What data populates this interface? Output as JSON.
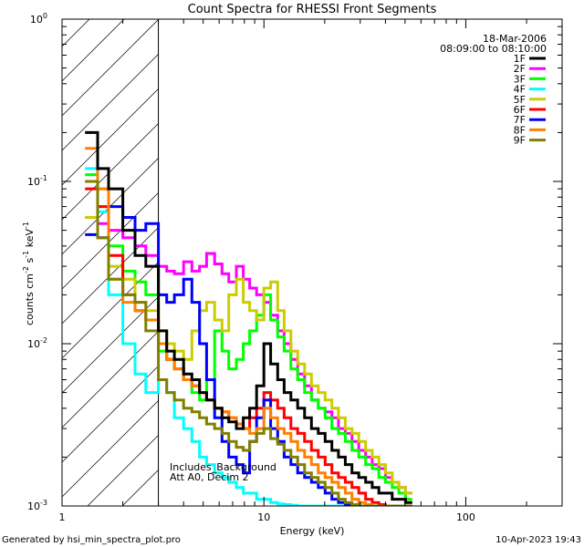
{
  "chart_data": {
    "type": "line",
    "title": "Count Spectra for RHESSI Front Segments",
    "xlabel": "Energy (keV)",
    "ylabel_parts": {
      "counts": "counts cm",
      "exp1": "-2",
      "s": " s",
      "exp2": "-1",
      "kev": " keV",
      "exp3": "-1"
    },
    "xscale": "log",
    "yscale": "log",
    "xlim": [
      1.0,
      300.0
    ],
    "ylim": [
      0.001,
      1.0
    ],
    "x_ticks": [
      {
        "value": 1,
        "label": "1"
      },
      {
        "value": 10,
        "label": "10"
      },
      {
        "value": 100,
        "label": "100"
      }
    ],
    "y_ticks": [
      {
        "value": 1,
        "base": "10",
        "exp": "0"
      },
      {
        "value": 0.1,
        "base": "10",
        "exp": "-1"
      },
      {
        "value": 0.01,
        "base": "10",
        "exp": "-2"
      },
      {
        "value": 0.001,
        "base": "10",
        "exp": "-3"
      }
    ],
    "hatched_region_x": [
      1.0,
      3.0
    ],
    "legend_header": [
      "18-Mar-2006",
      "08:09:00 to 08:10:00"
    ],
    "annotations": [
      "Includes_Background",
      "Att A0, Decim 2"
    ],
    "x_energy_edges": [
      1.3,
      1.5,
      1.7,
      2.0,
      2.3,
      2.6,
      3.0,
      3.3,
      3.6,
      4.0,
      4.4,
      4.8,
      5.2,
      5.7,
      6.2,
      6.7,
      7.3,
      7.9,
      8.5,
      9.2,
      10.0,
      10.8,
      11.7,
      12.6,
      13.6,
      14.7,
      15.9,
      17.2,
      18.6,
      20.1,
      21.7,
      23.4,
      25.3,
      27.3,
      29.5,
      31.9,
      34.4,
      37.1,
      40.0,
      43.2,
      46.6,
      50.3,
      54.3
    ],
    "series": [
      {
        "name": "1F",
        "color": "#000000",
        "values": [
          0.2,
          0.12,
          0.09,
          0.05,
          0.035,
          0.03,
          0.012,
          0.009,
          0.008,
          0.0065,
          0.006,
          0.005,
          0.0045,
          0.004,
          0.0035,
          0.0033,
          0.003,
          0.0035,
          0.004,
          0.0055,
          0.01,
          0.0075,
          0.006,
          0.005,
          0.0045,
          0.004,
          0.0035,
          0.003,
          0.0028,
          0.0025,
          0.0022,
          0.002,
          0.0018,
          0.0016,
          0.0015,
          0.0014,
          0.0013,
          0.0012,
          0.0012,
          0.0011,
          0.0011,
          0.00105
        ]
      },
      {
        "name": "2F",
        "color": "#ff00ff",
        "values": [
          0.06,
          0.055,
          0.05,
          0.045,
          0.04,
          0.035,
          0.03,
          0.028,
          0.027,
          0.032,
          0.028,
          0.03,
          0.036,
          0.031,
          0.027,
          0.024,
          0.03,
          0.025,
          0.022,
          0.02,
          0.018,
          0.015,
          0.012,
          0.01,
          0.008,
          0.0065,
          0.0055,
          0.0045,
          0.004,
          0.0038,
          0.0035,
          0.003,
          0.0028,
          0.0025,
          0.0022,
          0.002,
          0.0018,
          0.0017,
          0.0015,
          0.0014,
          0.0013,
          0.0012
        ]
      },
      {
        "name": "3F",
        "color": "#00ff00",
        "values": [
          0.11,
          0.09,
          0.04,
          0.028,
          0.024,
          0.02,
          0.009,
          0.008,
          0.007,
          0.006,
          0.005,
          0.0045,
          0.006,
          0.012,
          0.009,
          0.007,
          0.008,
          0.01,
          0.012,
          0.015,
          0.02,
          0.014,
          0.011,
          0.009,
          0.007,
          0.006,
          0.005,
          0.0045,
          0.004,
          0.0035,
          0.003,
          0.0028,
          0.0025,
          0.0022,
          0.002,
          0.0018,
          0.0017,
          0.0015,
          0.0014,
          0.0013,
          0.0012,
          0.0011
        ]
      },
      {
        "name": "4F",
        "color": "#00ffff",
        "values": [
          0.12,
          0.065,
          0.02,
          0.01,
          0.0065,
          0.005,
          0.006,
          0.005,
          0.0035,
          0.003,
          0.0025,
          0.002,
          0.0018,
          0.0016,
          0.0015,
          0.0014,
          0.0013,
          0.0012,
          0.0012,
          0.0011,
          0.0011,
          0.00105,
          0.00103,
          0.00102,
          0.00101,
          0.001,
          0.001,
          0.001,
          0.001,
          0.001,
          0.001,
          0.001,
          0.001,
          0.001,
          0.001,
          0.001,
          0.001,
          0.001,
          0.001,
          0.001,
          0.001,
          0.001
        ]
      },
      {
        "name": "5F",
        "color": "#cccc00",
        "values": [
          0.06,
          0.07,
          0.03,
          0.025,
          0.018,
          0.016,
          0.012,
          0.01,
          0.009,
          0.008,
          0.012,
          0.016,
          0.018,
          0.014,
          0.012,
          0.02,
          0.025,
          0.018,
          0.016,
          0.014,
          0.022,
          0.024,
          0.016,
          0.012,
          0.009,
          0.0075,
          0.0065,
          0.0055,
          0.005,
          0.0045,
          0.004,
          0.0035,
          0.003,
          0.0028,
          0.0025,
          0.0022,
          0.002,
          0.0018,
          0.0016,
          0.0014,
          0.0013,
          0.0012
        ]
      },
      {
        "name": "6F",
        "color": "#ff0000",
        "values": [
          0.09,
          0.07,
          0.035,
          0.02,
          0.016,
          0.014,
          0.01,
          0.008,
          0.007,
          0.006,
          0.0055,
          0.005,
          0.0045,
          0.004,
          0.0038,
          0.0035,
          0.0032,
          0.003,
          0.0035,
          0.004,
          0.005,
          0.0045,
          0.004,
          0.0035,
          0.003,
          0.0028,
          0.0025,
          0.0022,
          0.002,
          0.0018,
          0.0016,
          0.0015,
          0.0014,
          0.0013,
          0.0012,
          0.0011,
          0.00105,
          0.00102,
          0.001,
          0.001,
          0.001,
          0.001
        ]
      },
      {
        "name": "7F",
        "color": "#0000ff",
        "values": [
          0.047,
          0.045,
          0.07,
          0.06,
          0.05,
          0.055,
          0.02,
          0.018,
          0.02,
          0.025,
          0.018,
          0.01,
          0.006,
          0.0035,
          0.0025,
          0.002,
          0.0018,
          0.0016,
          0.0025,
          0.0035,
          0.0045,
          0.003,
          0.0025,
          0.002,
          0.0018,
          0.0016,
          0.0015,
          0.0014,
          0.0013,
          0.0012,
          0.0011,
          0.00105,
          0.00102,
          0.001,
          0.001,
          0.001,
          0.001,
          0.001,
          0.001,
          0.001,
          0.001,
          0.001
        ]
      },
      {
        "name": "8F",
        "color": "#ff8000",
        "values": [
          0.16,
          0.09,
          0.025,
          0.018,
          0.016,
          0.014,
          0.01,
          0.008,
          0.007,
          0.006,
          0.0055,
          0.005,
          0.0045,
          0.004,
          0.0038,
          0.0035,
          0.0032,
          0.003,
          0.0028,
          0.003,
          0.004,
          0.0035,
          0.003,
          0.0028,
          0.0025,
          0.0022,
          0.002,
          0.0018,
          0.0016,
          0.0015,
          0.0014,
          0.0013,
          0.0012,
          0.0011,
          0.00105,
          0.00102,
          0.001,
          0.001,
          0.001,
          0.001,
          0.001,
          0.001
        ]
      },
      {
        "name": "9F",
        "color": "#808000",
        "values": [
          0.1,
          0.045,
          0.025,
          0.02,
          0.018,
          0.012,
          0.006,
          0.005,
          0.0045,
          0.004,
          0.0038,
          0.0035,
          0.0032,
          0.003,
          0.0028,
          0.0025,
          0.0023,
          0.0022,
          0.0025,
          0.0028,
          0.003,
          0.0026,
          0.0024,
          0.0022,
          0.002,
          0.0018,
          0.0016,
          0.0015,
          0.0014,
          0.0013,
          0.0012,
          0.0011,
          0.00105,
          0.00102,
          0.001,
          0.001,
          0.001,
          0.001,
          0.001,
          0.001,
          0.001,
          0.001
        ]
      }
    ]
  },
  "footer": {
    "left": "Generated by hsi_min_spectra_plot.pro",
    "right": "10-Apr-2023 19:43"
  }
}
